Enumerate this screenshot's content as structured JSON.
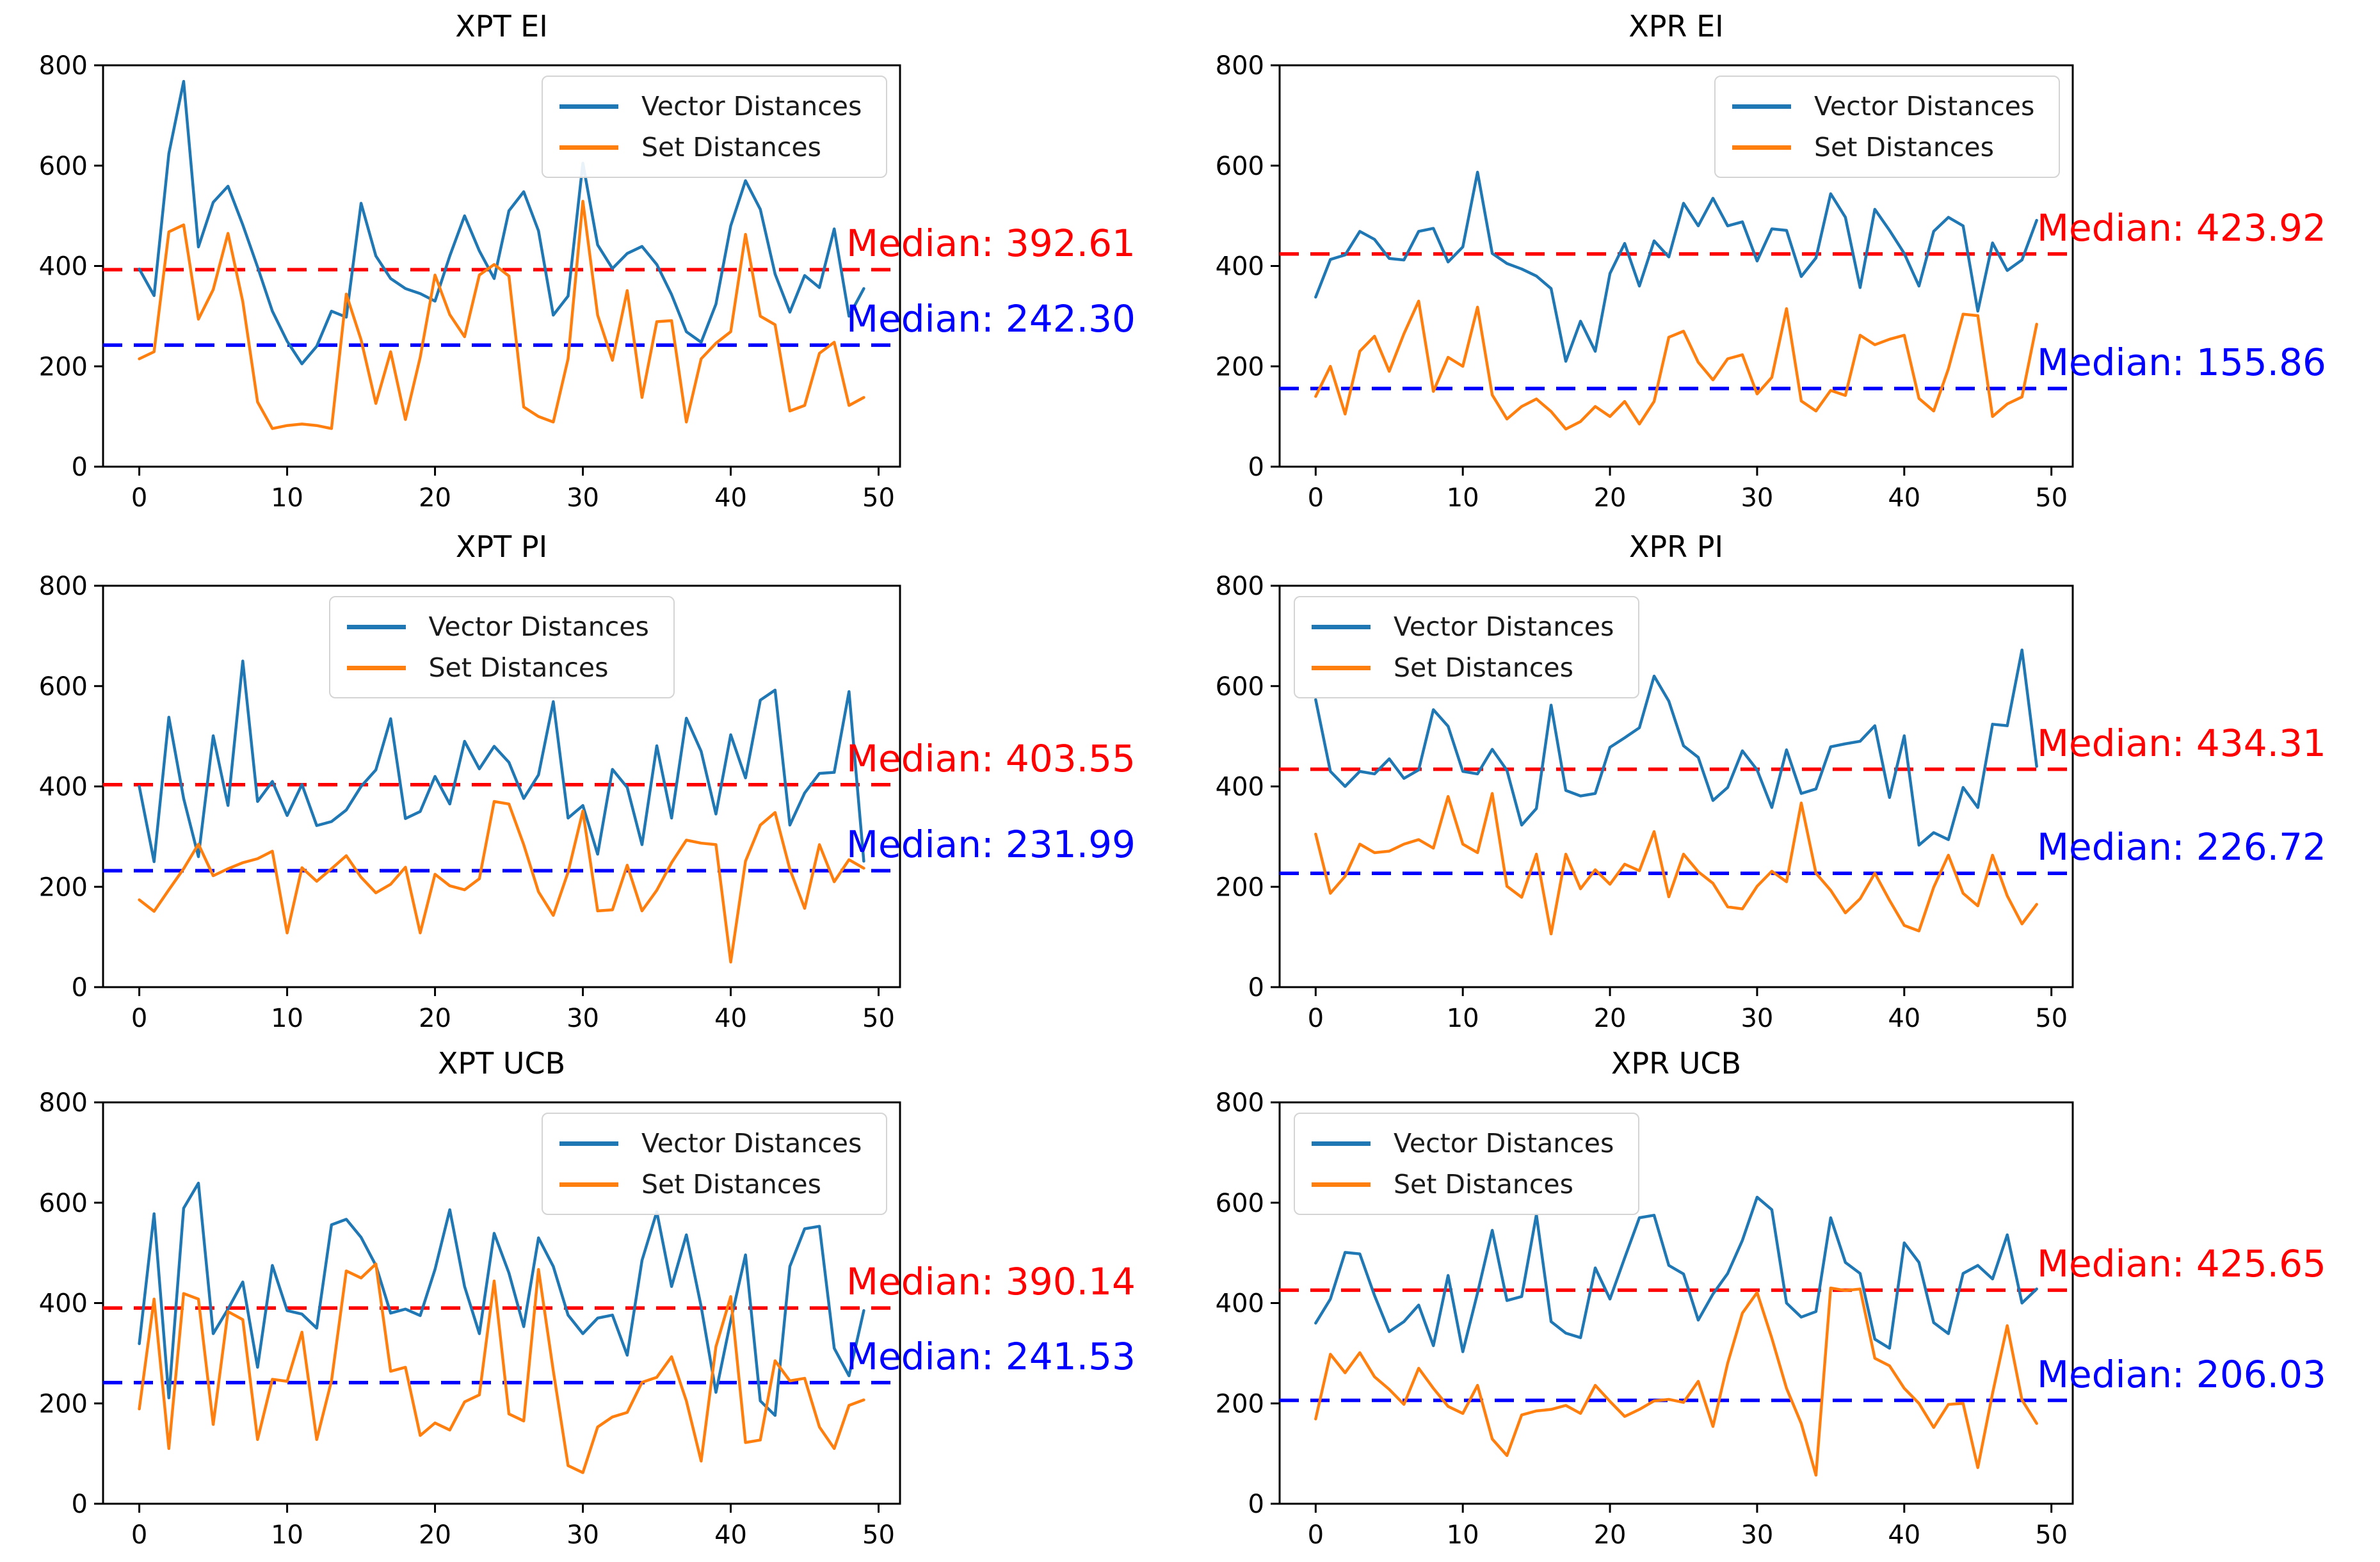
{
  "figure_title": "",
  "styles": {
    "vector_color": "#1f77b4",
    "set_color": "#ff7f0e",
    "median_vector_color": "#ff0000",
    "median_set_color": "#0000ff",
    "axis_color": "#000000",
    "background": "#ffffff"
  },
  "chart_data": [
    {
      "type": "line",
      "title": "XPT EI",
      "legend": [
        "Vector Distances",
        "Set Distances"
      ],
      "legend_position": "upper-right",
      "xlim": [
        -2.45,
        51.45
      ],
      "ylim": [
        0,
        800
      ],
      "x_ticks": [
        0,
        10,
        20,
        30,
        40,
        50
      ],
      "y_ticks": [
        0,
        200,
        400,
        600,
        800
      ],
      "median_vector": 392.61,
      "median_set": 242.3,
      "median_vector_label": "Median: 392.61",
      "median_set_label": "Median: 242.30",
      "series": [
        {
          "name": "Vector Distances",
          "values": [
            394,
            341,
            624,
            768,
            438,
            527,
            559,
            482,
            398,
            310,
            250,
            205,
            240,
            310,
            298,
            525,
            420,
            375,
            355,
            345,
            330,
            420,
            500,
            430,
            375,
            510,
            548,
            470,
            302,
            340,
            605,
            442,
            395,
            425,
            439,
            403,
            343,
            269,
            248,
            324,
            480,
            570,
            513,
            384,
            308,
            381,
            357,
            474,
            300,
            355
          ]
        },
        {
          "name": "Set Distances",
          "values": [
            215,
            229,
            468,
            482,
            294,
            353,
            465,
            329,
            129,
            76,
            82,
            85,
            82,
            76,
            344,
            253,
            126,
            229,
            94,
            218,
            382,
            303,
            259,
            382,
            403,
            380,
            119,
            100,
            89,
            215,
            529,
            302,
            212,
            351,
            138,
            289,
            291,
            89,
            215,
            246,
            269,
            463,
            300,
            283,
            111,
            122,
            226,
            248,
            122,
            138
          ]
        }
      ]
    },
    {
      "type": "line",
      "title": "XPR EI",
      "legend": [
        "Vector Distances",
        "Set Distances"
      ],
      "legend_position": "upper-right",
      "xlim": [
        -2.45,
        51.45
      ],
      "ylim": [
        0,
        800
      ],
      "x_ticks": [
        0,
        10,
        20,
        30,
        40,
        50
      ],
      "y_ticks": [
        0,
        200,
        400,
        600,
        800
      ],
      "median_vector": 423.92,
      "median_set": 155.86,
      "median_vector_label": "Median: 423.92",
      "median_set_label": "Median: 155.86",
      "series": [
        {
          "name": "Vector Distances",
          "values": [
            338,
            413,
            422,
            469,
            453,
            415,
            412,
            469,
            475,
            408,
            438,
            587,
            425,
            405,
            394,
            380,
            355,
            210,
            290,
            230,
            385,
            445,
            360,
            450,
            418,
            525,
            480,
            535,
            480,
            488,
            410,
            474,
            471,
            379,
            416,
            544,
            497,
            357,
            513,
            471,
            425,
            360,
            469,
            497,
            480,
            310,
            446,
            391,
            412,
            491
          ]
        },
        {
          "name": "Set Distances",
          "values": [
            140,
            200,
            105,
            230,
            260,
            190,
            265,
            330,
            150,
            218,
            200,
            318,
            143,
            95,
            120,
            135,
            110,
            75,
            90,
            120,
            100,
            130,
            85,
            130,
            258,
            270,
            208,
            173,
            215,
            223,
            145,
            178,
            315,
            131,
            111,
            152,
            142,
            262,
            243,
            254,
            262,
            136,
            111,
            195,
            304,
            301,
            100,
            125,
            139,
            284
          ]
        }
      ]
    },
    {
      "type": "line",
      "title": "XPT PI",
      "legend": [
        "Vector Distances",
        "Set Distances"
      ],
      "legend_position": "upper-center",
      "xlim": [
        -2.45,
        51.45
      ],
      "ylim": [
        0,
        800
      ],
      "x_ticks": [
        0,
        10,
        20,
        30,
        40,
        50
      ],
      "y_ticks": [
        0,
        200,
        400,
        600,
        800
      ],
      "median_vector": 403.55,
      "median_set": 231.99,
      "median_vector_label": "Median: 403.55",
      "median_set_label": "Median: 231.99",
      "series": [
        {
          "name": "Vector Distances",
          "values": [
            400,
            250,
            538,
            376,
            260,
            501,
            362,
            650,
            370,
            410,
            342,
            404,
            322,
            330,
            353,
            400,
            433,
            535,
            336,
            350,
            420,
            365,
            490,
            435,
            480,
            448,
            376,
            423,
            569,
            337,
            362,
            265,
            434,
            398,
            284,
            481,
            337,
            536,
            470,
            345,
            503,
            417,
            572,
            592,
            323,
            387,
            426,
            428,
            589,
            251
          ]
        },
        {
          "name": "Set Distances",
          "values": [
            174,
            151,
            194,
            236,
            285,
            222,
            236,
            248,
            256,
            271,
            108,
            238,
            211,
            236,
            262,
            219,
            188,
            205,
            239,
            108,
            225,
            202,
            194,
            216,
            370,
            365,
            284,
            190,
            143,
            229,
            351,
            152,
            154,
            243,
            152,
            193,
            248,
            293,
            287,
            284,
            50,
            251,
            323,
            348,
            235,
            157,
            284,
            210,
            254,
            237
          ]
        }
      ]
    },
    {
      "type": "line",
      "title": "XPR PI",
      "legend": [
        "Vector Distances",
        "Set Distances"
      ],
      "legend_position": "upper-left",
      "xlim": [
        -2.45,
        51.45
      ],
      "ylim": [
        0,
        800
      ],
      "x_ticks": [
        0,
        10,
        20,
        30,
        40,
        50
      ],
      "y_ticks": [
        0,
        200,
        400,
        600,
        800
      ],
      "median_vector": 434.31,
      "median_set": 226.72,
      "median_vector_label": "Median: 434.31",
      "median_set_label": "Median: 226.72",
      "series": [
        {
          "name": "Vector Distances",
          "values": [
            573,
            430,
            400,
            430,
            425,
            455,
            416,
            433,
            553,
            520,
            430,
            425,
            474,
            432,
            323,
            356,
            562,
            392,
            381,
            386,
            478,
            497,
            517,
            620,
            570,
            481,
            458,
            372,
            398,
            471,
            433,
            358,
            473,
            386,
            395,
            479,
            485,
            490,
            521,
            378,
            501,
            283,
            308,
            294,
            398,
            358,
            524,
            521,
            672,
            440
          ]
        },
        {
          "name": "Set Distances",
          "values": [
            305,
            187,
            221,
            285,
            268,
            271,
            285,
            294,
            277,
            380,
            285,
            268,
            386,
            201,
            179,
            265,
            106,
            265,
            196,
            234,
            205,
            245,
            232,
            310,
            180,
            265,
            230,
            207,
            160,
            156,
            201,
            231,
            210,
            367,
            227,
            193,
            148,
            176,
            227,
            173,
            123,
            112,
            199,
            263,
            187,
            162,
            263,
            182,
            126,
            165
          ]
        }
      ]
    },
    {
      "type": "line",
      "title": "XPT UCB",
      "legend": [
        "Vector Distances",
        "Set Distances"
      ],
      "legend_position": "upper-right",
      "xlim": [
        -2.45,
        51.45
      ],
      "ylim": [
        0,
        800
      ],
      "x_ticks": [
        0,
        10,
        20,
        30,
        40,
        50
      ],
      "y_ticks": [
        0,
        200,
        400,
        600,
        800
      ],
      "median_vector": 390.14,
      "median_set": 241.53,
      "median_vector_label": "Median: 390.14",
      "median_set_label": "Median: 241.53",
      "series": [
        {
          "name": "Vector Distances",
          "values": [
            319,
            578,
            211,
            589,
            639,
            339,
            388,
            442,
            272,
            475,
            385,
            378,
            350,
            556,
            567,
            531,
            475,
            380,
            388,
            375,
            467,
            586,
            433,
            339,
            539,
            460,
            353,
            530,
            473,
            376,
            339,
            370,
            376,
            296,
            485,
            582,
            433,
            536,
            393,
            222,
            365,
            496,
            205,
            176,
            473,
            548,
            553,
            310,
            255,
            385
          ]
        },
        {
          "name": "Set Distances",
          "values": [
            189,
            408,
            110,
            419,
            408,
            158,
            383,
            367,
            128,
            248,
            244,
            342,
            128,
            245,
            464,
            450,
            478,
            264,
            272,
            136,
            161,
            147,
            203,
            217,
            444,
            179,
            165,
            467,
            265,
            76,
            62,
            153,
            173,
            182,
            242,
            252,
            293,
            205,
            85,
            313,
            413,
            122,
            127,
            285,
            245,
            250,
            153,
            110,
            196,
            207
          ]
        }
      ]
    },
    {
      "type": "line",
      "title": "XPR UCB",
      "legend": [
        "Vector Distances",
        "Set Distances"
      ],
      "legend_position": "upper-left",
      "xlim": [
        -2.45,
        51.45
      ],
      "ylim": [
        0,
        800
      ],
      "x_ticks": [
        0,
        10,
        20,
        30,
        40,
        50
      ],
      "y_ticks": [
        0,
        200,
        400,
        600,
        800
      ],
      "median_vector": 425.65,
      "median_set": 206.03,
      "median_vector_label": "Median: 425.65",
      "median_set_label": "Median: 206.03",
      "series": [
        {
          "name": "Vector Distances",
          "values": [
            360,
            408,
            501,
            498,
            415,
            343,
            363,
            396,
            315,
            455,
            303,
            420,
            545,
            405,
            413,
            576,
            363,
            340,
            331,
            470,
            408,
            490,
            570,
            575,
            475,
            458,
            366,
            418,
            459,
            525,
            611,
            586,
            400,
            372,
            383,
            570,
            481,
            459,
            328,
            310,
            520,
            481,
            361,
            339,
            459,
            475,
            448,
            536,
            400,
            428
          ]
        },
        {
          "name": "Set Distances",
          "values": [
            169,
            298,
            261,
            301,
            253,
            228,
            198,
            270,
            230,
            194,
            180,
            236,
            129,
            96,
            177,
            185,
            188,
            196,
            180,
            236,
            204,
            174,
            188,
            205,
            208,
            202,
            244,
            154,
            280,
            380,
            421,
            330,
            230,
            160,
            57,
            430,
            425,
            428,
            290,
            275,
            230,
            200,
            152,
            198,
            200,
            72,
            220,
            355,
            207,
            160
          ]
        }
      ]
    }
  ]
}
